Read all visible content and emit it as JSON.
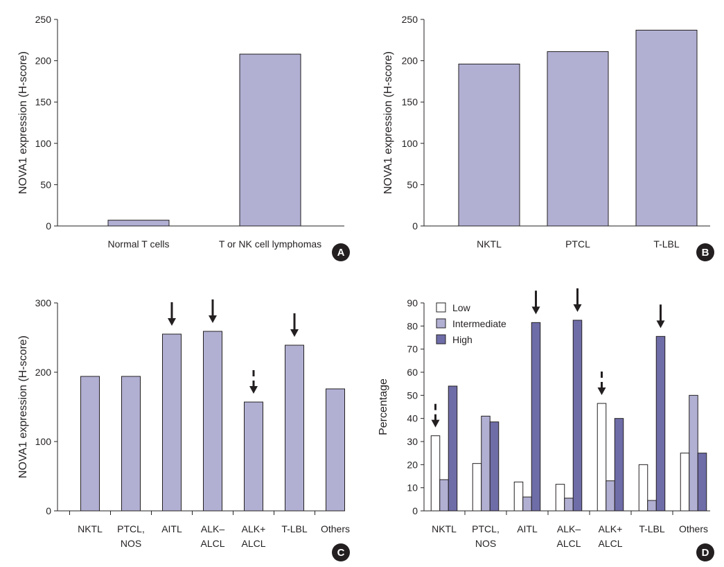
{
  "colors": {
    "bar": "#b1b0d3",
    "dark": "#6e6da8",
    "low": "#ffffff",
    "stroke": "#231f20",
    "badge": "#231f20"
  },
  "chart_data": [
    {
      "panel": "A",
      "type": "bar",
      "ylabel": "NOVA1 expression (H-score)",
      "ylim": [
        0,
        250
      ],
      "yticks": [
        0,
        50,
        100,
        150,
        200,
        250
      ],
      "categories": [
        [
          "Normal T cells"
        ],
        [
          "T or NK cell lymphomas"
        ]
      ],
      "values": [
        7,
        208
      ]
    },
    {
      "panel": "B",
      "type": "bar",
      "ylabel": "NOVA1 expression (H-score)",
      "ylim": [
        0,
        250
      ],
      "yticks": [
        0,
        50,
        100,
        150,
        200,
        250
      ],
      "categories": [
        [
          "NKTL"
        ],
        [
          "PTCL"
        ],
        [
          "T-LBL"
        ]
      ],
      "values": [
        196,
        211,
        237
      ]
    },
    {
      "panel": "C",
      "type": "bar",
      "ylabel": "NOVA1 expression (H-score)",
      "ylim": [
        0,
        300
      ],
      "yticks": [
        0,
        100,
        200,
        300
      ],
      "categories": [
        [
          "NKTL"
        ],
        [
          "PTCL,",
          "NOS"
        ],
        [
          "AITL"
        ],
        [
          "ALK–",
          "ALCL"
        ],
        [
          "ALK+",
          "ALCL"
        ],
        [
          "T-LBL"
        ],
        [
          "Others"
        ]
      ],
      "values": [
        194,
        194,
        255,
        259,
        157,
        239,
        176
      ],
      "annotations": [
        {
          "category": "AITL",
          "arrow": "solid"
        },
        {
          "category": "ALK– ALCL",
          "arrow": "solid"
        },
        {
          "category": "ALK+ ALCL",
          "arrow": "dashed"
        },
        {
          "category": "T-LBL",
          "arrow": "solid"
        }
      ]
    },
    {
      "panel": "D",
      "type": "bar",
      "ylabel": "Percentage",
      "ylim": [
        0,
        90
      ],
      "yticks": [
        0,
        10,
        20,
        30,
        40,
        50,
        60,
        70,
        80,
        90
      ],
      "categories": [
        [
          "NKTL"
        ],
        [
          "PTCL,",
          "NOS"
        ],
        [
          "AITL"
        ],
        [
          "ALK–",
          "ALCL"
        ],
        [
          "ALK+",
          "ALCL"
        ],
        [
          "T-LBL"
        ],
        [
          "Others"
        ]
      ],
      "legend_position": "top-left",
      "series": [
        {
          "name": "Low",
          "values": [
            32.5,
            20.5,
            12.5,
            11.5,
            46.5,
            20,
            25
          ]
        },
        {
          "name": "Intermediate",
          "values": [
            13.5,
            41,
            6,
            5.5,
            13,
            4.5,
            50
          ]
        },
        {
          "name": "High",
          "values": [
            54,
            38.5,
            81.5,
            82.5,
            40,
            75.5,
            25
          ]
        }
      ],
      "annotations": [
        {
          "category": "NKTL",
          "series": "Low",
          "arrow": "dashed"
        },
        {
          "category": "AITL",
          "series": "High",
          "arrow": "solid"
        },
        {
          "category": "ALK– ALCL",
          "series": "High",
          "arrow": "solid"
        },
        {
          "category": "ALK+ ALCL",
          "series": "Low",
          "arrow": "dashed"
        },
        {
          "category": "T-LBL",
          "series": "High",
          "arrow": "solid"
        }
      ]
    }
  ]
}
